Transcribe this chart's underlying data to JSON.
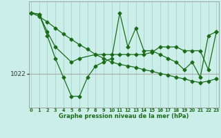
{
  "xlabel": "Graphe pression niveau de la mer (hPa)",
  "background_color": "#cceee8",
  "grid_color_v": "#a8d8d0",
  "grid_color_h": "#aaaaaa",
  "line_color": "#1a6b1a",
  "ylim": [
    1017.5,
    1031.5
  ],
  "yticks": [
    1022
  ],
  "xlim": [
    -0.3,
    23.3
  ],
  "xticks": [
    0,
    1,
    2,
    3,
    4,
    5,
    6,
    7,
    8,
    9,
    10,
    11,
    12,
    13,
    14,
    15,
    16,
    17,
    18,
    19,
    20,
    21,
    22,
    23
  ],
  "line1_x": [
    0,
    1,
    2,
    3,
    4,
    5,
    6,
    7,
    8,
    9,
    10,
    11,
    12,
    13,
    14,
    15,
    16,
    17,
    18,
    19,
    20,
    21,
    22,
    23
  ],
  "line1_y": [
    1030.0,
    1029.8,
    1027.0,
    1024.0,
    1021.5,
    1019.0,
    1019.0,
    1021.5,
    1023.0,
    1023.5,
    1024.0,
    1030.0,
    1025.5,
    1028.0,
    1025.0,
    1025.0,
    1024.5,
    1024.0,
    1023.5,
    1022.5,
    1023.5,
    1021.5,
    1027.0,
    1027.5
  ],
  "line2_x": [
    0,
    1,
    2,
    3,
    5,
    6,
    8,
    9,
    10,
    11,
    12,
    13,
    14,
    15,
    16,
    17,
    18,
    19,
    20,
    21,
    22,
    23
  ],
  "line2_y": [
    1030.0,
    1029.8,
    1027.5,
    1025.5,
    1023.5,
    1024.0,
    1024.5,
    1024.5,
    1024.5,
    1024.5,
    1024.5,
    1024.5,
    1024.5,
    1024.8,
    1025.5,
    1025.5,
    1025.5,
    1025.0,
    1025.0,
    1025.0,
    1022.5,
    1027.5
  ],
  "line3_x": [
    0,
    1,
    2,
    3,
    4,
    5,
    6,
    7,
    8,
    9,
    10,
    11,
    12,
    13,
    14,
    15,
    16,
    17,
    18,
    19,
    20,
    21,
    22,
    23
  ],
  "line3_y": [
    1030.0,
    1029.5,
    1028.8,
    1028.0,
    1027.2,
    1026.5,
    1025.8,
    1025.2,
    1024.5,
    1024.0,
    1023.5,
    1023.2,
    1023.0,
    1022.8,
    1022.5,
    1022.3,
    1022.0,
    1021.8,
    1021.5,
    1021.3,
    1021.0,
    1020.8,
    1021.0,
    1021.3
  ]
}
